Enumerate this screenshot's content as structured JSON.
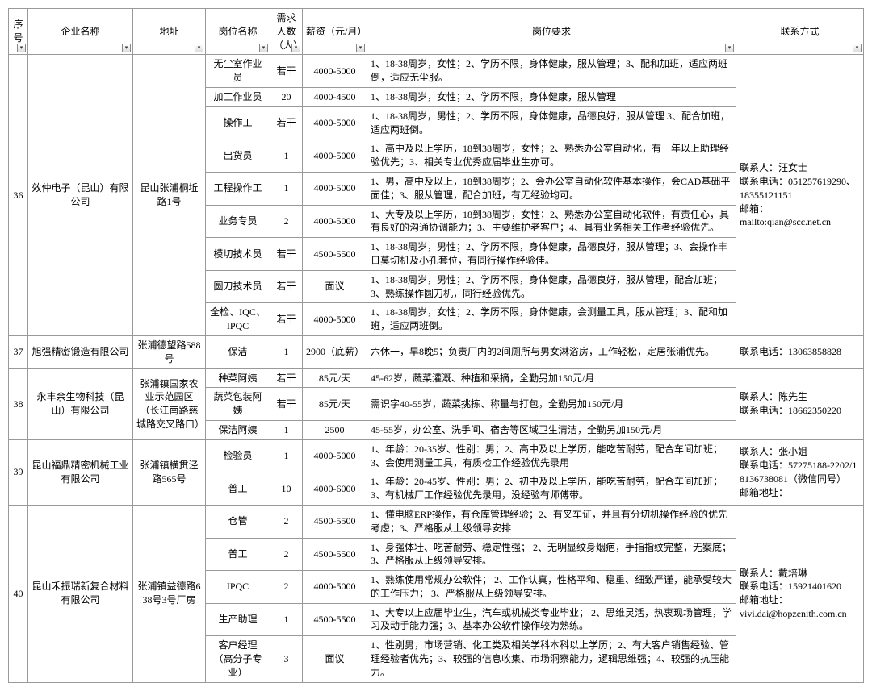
{
  "headers": {
    "no": "序号",
    "company": "企业名称",
    "address": "地址",
    "position": "岗位名称",
    "count": "需求人数（人）",
    "salary": "薪资（元/月）",
    "requirement": "岗位要求",
    "contact": "联系方式"
  },
  "colors": {
    "border": "#999999",
    "text": "#000000",
    "bg": "#ffffff"
  },
  "groups": [
    {
      "no": "36",
      "company": "效仲电子（昆山）有限公司",
      "address": "昆山张浦桐坵路1号",
      "contact": "联系人：汪女士\n联系电话：051257619290、18355121151\n邮箱：\nmailto:qian@scc.net.cn",
      "rows": [
        {
          "position": "无尘室作业员",
          "count": "若干",
          "salary": "4000-5000",
          "req": "1、18-38周岁，女性；2、学历不限，身体健康，服从管理；3、配和加班，适应两班倒，适应无尘服。"
        },
        {
          "position": "加工作业员",
          "count": "20",
          "salary": "4000-4500",
          "req": "1、18-38周岁，女性；2、学历不限，身体健康，服从管理"
        },
        {
          "position": "操作工",
          "count": "若干",
          "salary": "4000-5000",
          "req": "1、18-38周岁，男性；2、学历不限，身体健康，品德良好，服从管理 3、配合加班，适应两班倒。"
        },
        {
          "position": "出货员",
          "count": "1",
          "salary": "4000-5000",
          "req": "1、高中及以上学历，18到38周岁，女性；2、熟悉办公室自动化，有一年以上助理经验优先；3、相关专业优秀应届毕业生亦可。"
        },
        {
          "position": "工程操作工",
          "count": "1",
          "salary": "4000-5000",
          "req": "1、男，高中及以上，18到38周岁；2、会办公室自动化软件基本操作，会CAD基础平面佳；3、服从管理，配合加班，有无经验均可。"
        },
        {
          "position": "业务专员",
          "count": "2",
          "salary": "4000-5000",
          "req": "1、大专及以上学历，18到38周岁，女性；2、熟悉办公室自动化软件，有责任心，具有良好的沟通协调能力；3、主要维护老客户；4、具有业务相关工作者经验优先。"
        },
        {
          "position": "模切技术员",
          "count": "若干",
          "salary": "4500-5500",
          "req": "1、18-38周岁，男性；2、学历不限，身体健康，品德良好，服从管理；3、会操作丰日莫切机及小孔套位，有同行操作经验佳。"
        },
        {
          "position": "圆刀技术员",
          "count": "若干",
          "salary": "面议",
          "req": "1、18-38周岁，男性；2、学历不限，身体健康，品德良好，服从管理，配合加班；3、熟练操作圆刀机，同行经验优先。"
        },
        {
          "position": "全检、IQC、IPQC",
          "count": "若干",
          "salary": "4000-5000",
          "req": "1、18-38周岁，女性；2、学历不限，身体健康，会测量工具，服从管理；3、配和加班，适应两班倒。"
        }
      ]
    },
    {
      "no": "37",
      "company": "旭强精密锻造有限公司",
      "address": "张浦德望路588号",
      "contact": "联系电话：13063858828",
      "rows": [
        {
          "position": "保洁",
          "count": "1",
          "salary": "2900（底薪）",
          "req": "六休一，早8晚5；负责厂内的2间厕所与男女淋浴房，工作轻松，定居张浦优先。"
        }
      ]
    },
    {
      "no": "38",
      "company": "永丰余生物科技（昆山）有限公司",
      "address": "张浦镇国家农业示范园区（长江南路慈城路交叉路口）",
      "contact": "联系人：陈先生\n联系电话：18662350220",
      "rows": [
        {
          "position": "种菜阿姨",
          "count": "若干",
          "salary": "85元/天",
          "req": "45-62岁，蔬菜灌溉、种植和采摘，全勤另加150元/月"
        },
        {
          "position": "蔬菜包装阿姨",
          "count": "若干",
          "salary": "85元/天",
          "req": "需识字40-55岁，蔬菜挑拣、称量与打包，全勤另加150元/月"
        },
        {
          "position": "保洁阿姨",
          "count": "1",
          "salary": "2500",
          "req": "45-55岁，办公室、洗手间、宿舍等区域卫生清洁，全勤另加150元/月"
        }
      ]
    },
    {
      "no": "39",
      "company": "昆山福鼎精密机械工业有限公司",
      "address": "张浦镇横贯泾路565号",
      "contact": "联系人：张小姐\n联系电话：57275188-2202/18136738081（微信同号）\n邮箱地址：",
      "rows": [
        {
          "position": "检验员",
          "count": "1",
          "salary": "4000-5000",
          "req": "1、年龄：20-35岁、性别：男；2、高中及以上学历，能吃苦耐劳，配合车间加班；3、会使用测量工具，有质检工作经验优先录用"
        },
        {
          "position": "普工",
          "count": "10",
          "salary": "4000-6000",
          "req": "1、年龄：20-45岁、性别：男；2、初中及以上学历，能吃苦耐劳，配合车间加班；3、有机械厂工作经验优先录用，没经验有师傅带。"
        }
      ]
    },
    {
      "no": "40",
      "company": "昆山禾振瑞新复合材料有限公司",
      "address": "张浦镇益德路638号3号厂房",
      "contact": "联系人：戴培琳\n联系电话：15921401620\n邮箱地址：\nvivi.dai@hopzenith.com.cn",
      "rows": [
        {
          "position": "仓管",
          "count": "2",
          "salary": "4500-5500",
          "req": "1、懂电脑ERP操作，有仓库管理经验；2、有叉车证，并且有分切机操作经验的优先考虑；3、严格服从上级领导安排"
        },
        {
          "position": "普工",
          "count": "2",
          "salary": "4500-5500",
          "req": "1、身强体壮、吃苦耐劳、稳定性强； 2、无明显纹身烟疤，手指指纹完整，无案底；3、严格服从上级领导安排。"
        },
        {
          "position": "IPQC",
          "count": "2",
          "salary": "4000-5000",
          "req": "1、熟练使用常规办公软件； 2、工作认真，性格平和、稳重、细致严谨，能承受较大的工作压力； 3、严格服从上级领导安排。"
        },
        {
          "position": "生产助理",
          "count": "1",
          "salary": "4500-5500",
          "req": "1、大专以上应届毕业生，汽车或机械类专业毕业； 2、思维灵活，热衷现场管理，学习及动手能力强；3、基本办公软件操作较为熟练。"
        },
        {
          "position": "客户经理（高分子专业）",
          "count": "3",
          "salary": "面议",
          "req": "1、性别男，市场营销、化工类及相关学科本科以上学历；2、有大客户销售经验、管理经验者优先；3、较强的信息收集、市场洞察能力，逻辑思维强；4、较强的抗压能力。"
        }
      ]
    }
  ]
}
